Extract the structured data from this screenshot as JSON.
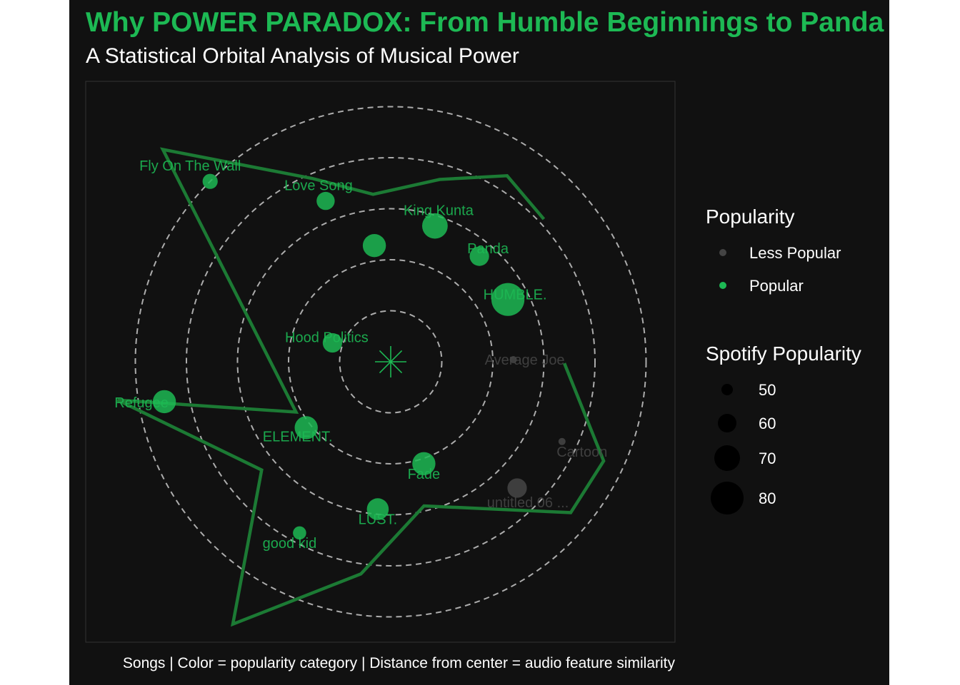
{
  "title": "Why POWER PARADOX: From Humble Beginnings to Panda",
  "subtitle": "A Statistical Orbital Analysis of Musical Power",
  "caption": "Songs | Color = popularity category | Distance from center = audio feature similarity",
  "colors": {
    "popular": "#1db954",
    "less_popular": "#444444",
    "title": "#1db954",
    "background": "#111111",
    "orbit": "#c8c8c8"
  },
  "center_marker_icon": "asterisk-star-icon",
  "chart_data": {
    "type": "scatter",
    "coordinate_system": "polar",
    "orbit_rings": [
      1,
      2,
      3,
      4,
      5
    ],
    "r_max": 6,
    "points": [
      {
        "label": "Fly On The Wall",
        "angle_deg": 135,
        "r": 5.0,
        "popularity": 53,
        "category": "Popular"
      },
      {
        "label": "Love Song",
        "angle_deg": 112,
        "r": 3.4,
        "popularity": 58,
        "category": "Popular"
      },
      {
        "label": "",
        "angle_deg": 98,
        "r": 2.3,
        "popularity": 66,
        "category": "Popular"
      },
      {
        "label": "King Kunta",
        "angle_deg": 72,
        "r": 2.8,
        "popularity": 70,
        "category": "Popular"
      },
      {
        "label": "Panda",
        "angle_deg": 50,
        "r": 2.7,
        "popularity": 60,
        "category": "Popular"
      },
      {
        "label": "HUMBLE.",
        "angle_deg": 28,
        "r": 2.6,
        "popularity": 82,
        "category": "Popular"
      },
      {
        "label": "Average Joe",
        "angle_deg": 1,
        "r": 2.4,
        "popularity": 40,
        "category": "Less Popular"
      },
      {
        "label": "Cartoon",
        "angle_deg": -25,
        "r": 3.7,
        "popularity": 40,
        "category": "Less Popular"
      },
      {
        "label": "untitled 06 ...",
        "angle_deg": -45,
        "r": 3.5,
        "popularity": 60,
        "category": "Less Popular"
      },
      {
        "label": "Fade",
        "angle_deg": -72,
        "r": 2.1,
        "popularity": 66,
        "category": "Popular"
      },
      {
        "label": "LUST.",
        "angle_deg": -95,
        "r": 2.9,
        "popularity": 64,
        "category": "Popular"
      },
      {
        "label": "good kid",
        "angle_deg": -118,
        "r": 3.8,
        "popularity": 50,
        "category": "Popular"
      },
      {
        "label": "Refugee",
        "angle_deg": -170,
        "r": 4.5,
        "popularity": 66,
        "category": "Popular"
      },
      {
        "label": "ELEMENT.",
        "angle_deg": -142,
        "r": 2.1,
        "popularity": 66,
        "category": "Popular"
      },
      {
        "label": "Hood Politics",
        "angle_deg": 162,
        "r": 1.2,
        "popularity": 60,
        "category": "Popular"
      }
    ],
    "path": [
      {
        "angle_deg": 43,
        "r": 4.1
      },
      {
        "angle_deg": 58,
        "r": 4.3
      },
      {
        "angle_deg": 75,
        "r": 3.7
      },
      {
        "angle_deg": 96,
        "r": 3.3
      },
      {
        "angle_deg": 113,
        "r": 3.9
      },
      {
        "angle_deg": 137,
        "r": 6.1
      },
      {
        "angle_deg": 28,
        "r": -2.1
      },
      {
        "angle_deg": -172,
        "r": 5.4
      },
      {
        "angle_deg": -140,
        "r": 3.3
      },
      {
        "angle_deg": -121,
        "r": 6.0
      },
      {
        "angle_deg": -98,
        "r": 4.2
      },
      {
        "angle_deg": -77,
        "r": 2.9
      },
      {
        "angle_deg": -40,
        "r": 4.6
      },
      {
        "angle_deg": -25,
        "r": 4.6
      },
      {
        "angle_deg": -0.5,
        "r": 3.4
      }
    ],
    "legend": {
      "placement": "right",
      "color_title": "Popularity",
      "color_entries": [
        {
          "label": "Less Popular",
          "category": "Less Popular"
        },
        {
          "label": "Popular",
          "category": "Popular"
        }
      ],
      "size_title": "Spotify Popularity",
      "size_entries": [
        {
          "label": "50",
          "value": 50
        },
        {
          "label": "60",
          "value": 60
        },
        {
          "label": "70",
          "value": 70
        },
        {
          "label": "80",
          "value": 80
        }
      ]
    }
  }
}
